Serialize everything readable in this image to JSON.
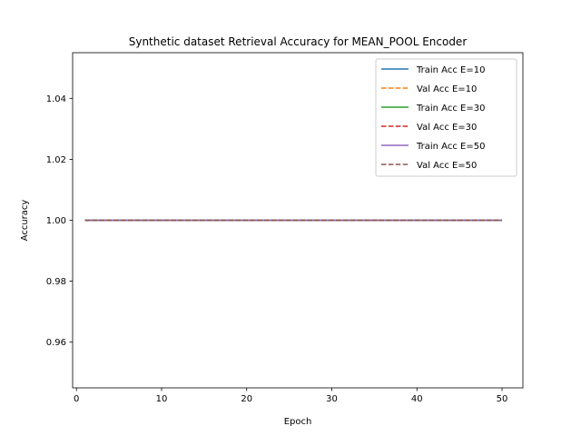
{
  "chart_data": {
    "type": "line",
    "title": "Synthetic dataset Retrieval Accuracy for MEAN_POOL Encoder",
    "xlabel": "Epoch",
    "ylabel": "Accuracy",
    "xlim": [
      -0.45,
      52.45
    ],
    "ylim": [
      0.945,
      1.055
    ],
    "xticks": [
      0,
      10,
      20,
      30,
      40,
      50
    ],
    "xtick_labels": [
      "0",
      "10",
      "20",
      "30",
      "40",
      "50"
    ],
    "yticks": [
      0.96,
      0.98,
      1.0,
      1.02,
      1.04
    ],
    "ytick_labels": [
      "0.96",
      "0.98",
      "1.00",
      "1.02",
      "1.04"
    ],
    "legend_position": "top-right",
    "series": [
      {
        "name": "Train Acc E=10",
        "color": "#1f77b4",
        "style": "solid",
        "x": [
          1,
          50
        ],
        "values": [
          1.0,
          1.0
        ]
      },
      {
        "name": "Val Acc E=10",
        "color": "#ff7f0e",
        "style": "dashed",
        "x": [
          1,
          50
        ],
        "values": [
          1.0,
          1.0
        ]
      },
      {
        "name": "Train Acc E=30",
        "color": "#2ca02c",
        "style": "solid",
        "x": [
          1,
          50
        ],
        "values": [
          1.0,
          1.0
        ]
      },
      {
        "name": "Val Acc E=30",
        "color": "#d62728",
        "style": "dashed",
        "x": [
          1,
          50
        ],
        "values": [
          1.0,
          1.0
        ]
      },
      {
        "name": "Train Acc E=50",
        "color": "#9467bd",
        "style": "solid",
        "x": [
          1,
          50
        ],
        "values": [
          1.0,
          1.0
        ]
      },
      {
        "name": "Val Acc E=50",
        "color": "#8c564b",
        "style": "dashed",
        "x": [
          1,
          50
        ],
        "values": [
          1.0,
          1.0
        ]
      }
    ]
  }
}
